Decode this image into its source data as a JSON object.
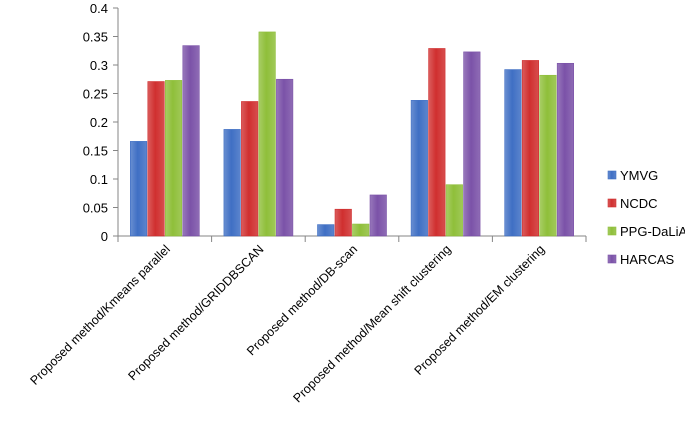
{
  "chart_data": {
    "type": "bar",
    "title": "",
    "xlabel": "",
    "ylabel": "",
    "categories": [
      "Proposed method/Kmeans parallel",
      "Proposed method/GRIDDBSCAN",
      "Proposed method/DB-scan",
      "Proposed method/Mean shift clustering",
      "Proposed method/EM clustering"
    ],
    "series": [
      {
        "name": "YMVG",
        "values": [
          0.166,
          0.187,
          0.02,
          0.238,
          0.292
        ],
        "color": "#3f6fc4"
      },
      {
        "name": "NCDC",
        "values": [
          0.271,
          0.236,
          0.047,
          0.329,
          0.308
        ],
        "color": "#d02f2f"
      },
      {
        "name": "PPG-DaLiA",
        "values": [
          0.273,
          0.358,
          0.021,
          0.09,
          0.282
        ],
        "color": "#8fbf3a"
      },
      {
        "name": "HARCAS",
        "values": [
          0.334,
          0.275,
          0.072,
          0.323,
          0.303
        ],
        "color": "#7b52a8"
      }
    ],
    "ylim": [
      0,
      0.4
    ],
    "yticks": [
      "0",
      "0.05",
      "0.1",
      "0.15",
      "0.2",
      "0.25",
      "0.3",
      "0.35",
      "0.4"
    ],
    "grid": false,
    "legend_position": "right"
  }
}
